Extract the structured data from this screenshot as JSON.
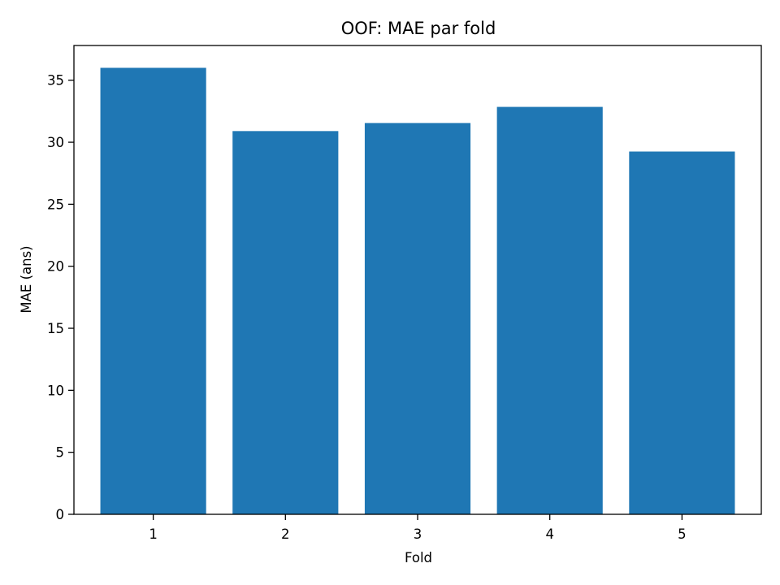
{
  "chart_data": {
    "type": "bar",
    "title": "OOF: MAE par fold",
    "xlabel": "Fold",
    "ylabel": "MAE (ans)",
    "categories": [
      "1",
      "2",
      "3",
      "4",
      "5"
    ],
    "values": [
      36.0,
      30.9,
      31.55,
      32.85,
      29.25
    ],
    "ylim": [
      0,
      37.8
    ],
    "yticks": [
      0,
      5,
      10,
      15,
      20,
      25,
      30,
      35
    ],
    "grid": false,
    "legend": "none",
    "bar_color": "#1f77b4"
  }
}
